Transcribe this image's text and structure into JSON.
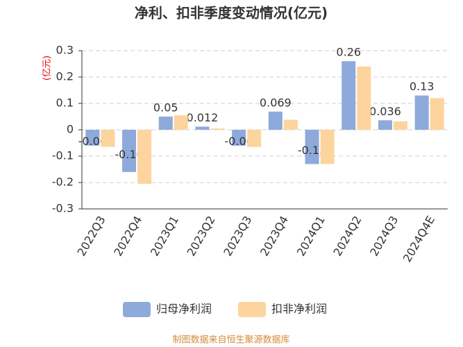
{
  "chart_data": {
    "type": "bar",
    "title": "净利、扣非季度变动情况(亿元)",
    "y_label": "(亿元)",
    "categories": [
      "2022Q3",
      "2022Q4",
      "2023Q1",
      "2023Q2",
      "2023Q3",
      "2023Q4",
      "2024Q1",
      "2024Q2",
      "2024Q3",
      "2024Q4E"
    ],
    "series": [
      {
        "name": "归母净利润",
        "color": "#8eaadb",
        "values": [
          -0.06,
          -0.16,
          0.05,
          0.012,
          -0.06,
          0.069,
          -0.13,
          0.26,
          0.036,
          0.13
        ]
      },
      {
        "name": "扣非净利润",
        "color": "#fdd49e",
        "values": [
          -0.065,
          -0.205,
          0.055,
          0.005,
          -0.065,
          0.038,
          -0.13,
          0.24,
          0.032,
          0.12
        ]
      }
    ],
    "ylim": [
      -0.3,
      0.3
    ],
    "yticks": [
      -0.3,
      -0.2,
      -0.1,
      0,
      0.1,
      0.2,
      0.3
    ],
    "grid": true,
    "source": "制图数据来自恒生聚源数据库"
  }
}
